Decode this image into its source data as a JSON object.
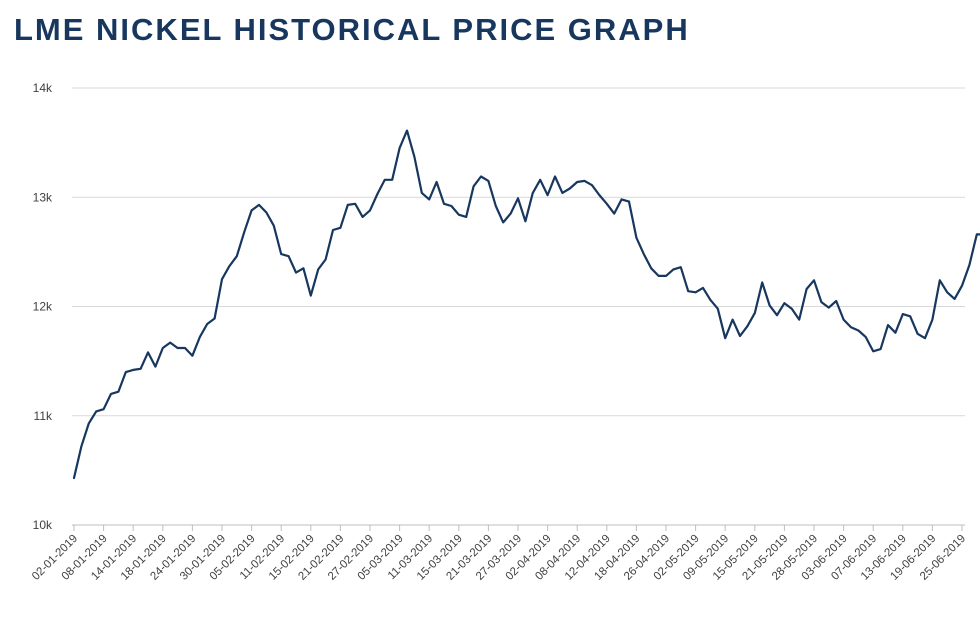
{
  "chart_data": {
    "type": "line",
    "title": "LME NICKEL HISTORICAL PRICE GRAPH",
    "xlabel": "",
    "ylabel": "",
    "ylim": [
      10000,
      14000
    ],
    "grid": true,
    "y_ticks": [
      {
        "value": 10000,
        "label": "10k"
      },
      {
        "value": 11000,
        "label": "11k"
      },
      {
        "value": 12000,
        "label": "12k"
      },
      {
        "value": 13000,
        "label": "13k"
      },
      {
        "value": 14000,
        "label": "14k"
      }
    ],
    "x_tick_labels": [
      {
        "index": 0,
        "label": "02-01-2019"
      },
      {
        "index": 4,
        "label": "08-01-2019"
      },
      {
        "index": 8,
        "label": "14-01-2019"
      },
      {
        "index": 12,
        "label": "18-01-2019"
      },
      {
        "index": 16,
        "label": "24-01-2019"
      },
      {
        "index": 20,
        "label": "30-01-2019"
      },
      {
        "index": 24,
        "label": "05-02-2019"
      },
      {
        "index": 28,
        "label": "11-02-2019"
      },
      {
        "index": 32,
        "label": "15-02-2019"
      },
      {
        "index": 36,
        "label": "21-02-2019"
      },
      {
        "index": 40,
        "label": "27-02-2019"
      },
      {
        "index": 44,
        "label": "05-03-2019"
      },
      {
        "index": 48,
        "label": "11-03-2019"
      },
      {
        "index": 52,
        "label": "15-03-2019"
      },
      {
        "index": 56,
        "label": "21-03-2019"
      },
      {
        "index": 60,
        "label": "27-03-2019"
      },
      {
        "index": 64,
        "label": "02-04-2019"
      },
      {
        "index": 68,
        "label": "08-04-2019"
      },
      {
        "index": 72,
        "label": "12-04-2019"
      },
      {
        "index": 76,
        "label": "18-04-2019"
      },
      {
        "index": 80,
        "label": "26-04-2019"
      },
      {
        "index": 84,
        "label": "02-05-2019"
      },
      {
        "index": 88,
        "label": "09-05-2019"
      },
      {
        "index": 92,
        "label": "15-05-2019"
      },
      {
        "index": 96,
        "label": "21-05-2019"
      },
      {
        "index": 100,
        "label": "28-05-2019"
      },
      {
        "index": 104,
        "label": "03-06-2019"
      },
      {
        "index": 108,
        "label": "07-06-2019"
      },
      {
        "index": 112,
        "label": "13-06-2019"
      },
      {
        "index": 116,
        "label": "19-06-2019"
      },
      {
        "index": 120,
        "label": "25-06-2019"
      }
    ],
    "series": [
      {
        "name": "LME Nickel",
        "color": "#17375e",
        "values": [
          10430,
          10720,
          10930,
          11040,
          11060,
          11200,
          11220,
          11400,
          11420,
          11430,
          11580,
          11450,
          11620,
          11670,
          11620,
          11620,
          11550,
          11720,
          11840,
          11890,
          12250,
          12370,
          12460,
          12680,
          12880,
          12930,
          12860,
          12740,
          12480,
          12460,
          12310,
          12350,
          12100,
          12340,
          12430,
          12700,
          12720,
          12930,
          12940,
          12820,
          12880,
          13030,
          13160,
          13160,
          13450,
          13610,
          13370,
          13040,
          12980,
          13140,
          12940,
          12920,
          12840,
          12820,
          13100,
          13190,
          13150,
          12920,
          12770,
          12850,
          12990,
          12780,
          13040,
          13160,
          13020,
          13190,
          13040,
          13080,
          13140,
          13150,
          13110,
          13020,
          12940,
          12850,
          12980,
          12960,
          12630,
          12480,
          12350,
          12280,
          12280,
          12340,
          12360,
          12140,
          12130,
          12170,
          12060,
          11980,
          11710,
          11880,
          11730,
          11820,
          11940,
          12220,
          12010,
          11920,
          12030,
          11980,
          11880,
          12160,
          12240,
          12040,
          11990,
          12050,
          11880,
          11810,
          11780,
          11720,
          11590,
          11610,
          11830,
          11760,
          11930,
          11910,
          11750,
          11710,
          11880,
          12240,
          12130,
          12070,
          12190,
          12380,
          12660,
          12660
        ]
      }
    ]
  }
}
